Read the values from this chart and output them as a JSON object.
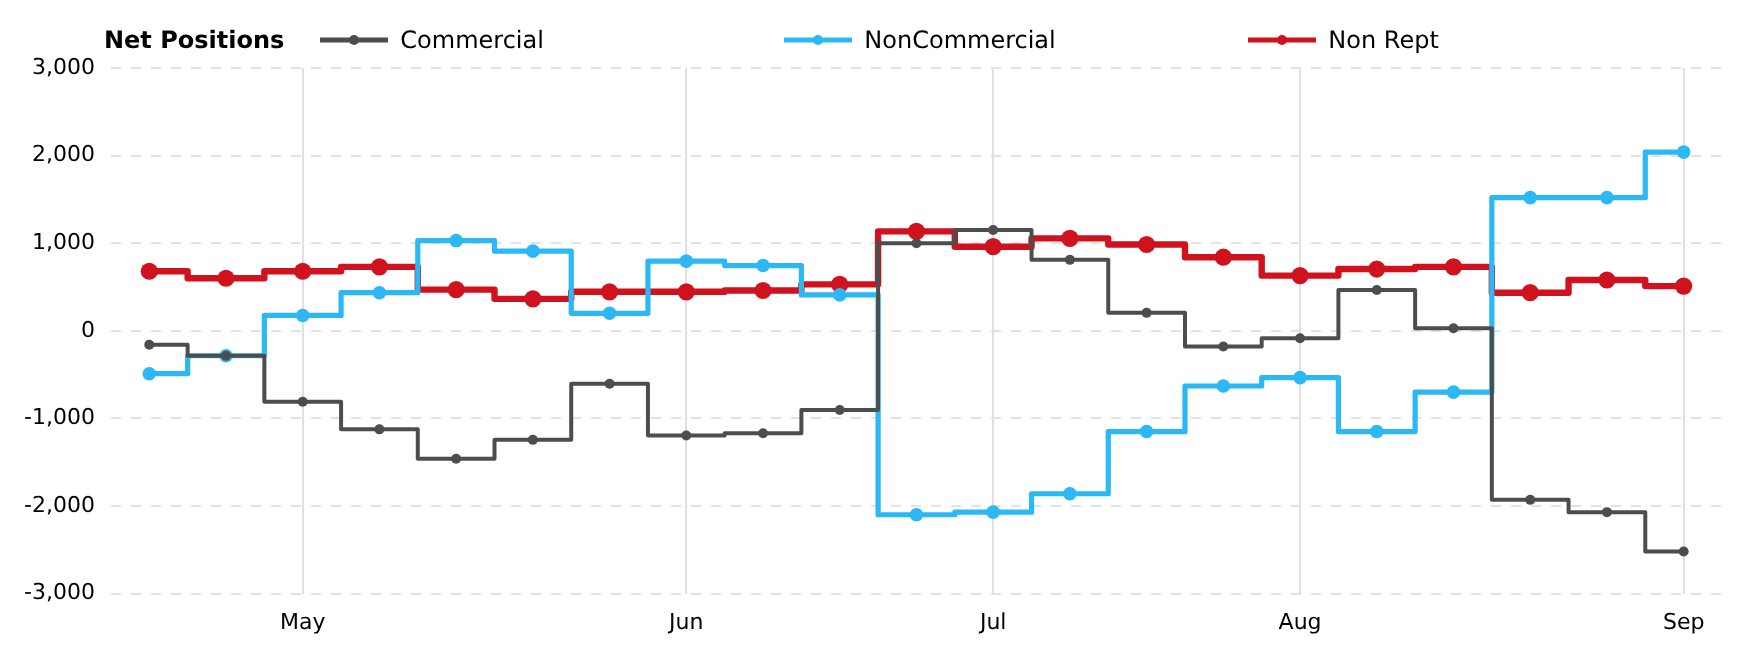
{
  "chart_data": {
    "type": "step",
    "legend_title": "Net Positions",
    "categories": [
      null,
      null,
      "May",
      null,
      null,
      null,
      null,
      "Jun",
      null,
      null,
      null,
      "Jul",
      null,
      null,
      null,
      "Aug",
      null,
      null,
      null,
      null,
      "Sep"
    ],
    "series": [
      {
        "name": "Commercial",
        "color": "#4d4d4d",
        "values": [
          -160,
          -285,
          -810,
          -1125,
          -1460,
          -1245,
          -605,
          -1195,
          -1170,
          -905,
          1000,
          1150,
          810,
          205,
          -180,
          -85,
          465,
          30,
          -1930,
          -2070,
          -2520
        ]
      },
      {
        "name": "NonCommercial",
        "color": "#2cb7f5",
        "values": [
          -490,
          -285,
          175,
          435,
          1030,
          910,
          200,
          795,
          745,
          410,
          -2100,
          -2070,
          -1860,
          -1150,
          -630,
          -535,
          -1150,
          -700,
          1520,
          1520,
          2040
        ]
      },
      {
        "name": "Non Rept",
        "color": "#d0121f",
        "values": [
          680,
          600,
          680,
          730,
          470,
          365,
          445,
          445,
          460,
          530,
          1135,
          960,
          1055,
          985,
          840,
          630,
          705,
          730,
          435,
          580,
          510
        ]
      }
    ],
    "ylim": [
      -3000,
      3000
    ],
    "yticks": [
      {
        "value": -3000,
        "label": "-3,000"
      },
      {
        "value": -2000,
        "label": "-2,000"
      },
      {
        "value": -1000,
        "label": "-1,000"
      },
      0,
      {
        "value": 1000,
        "label": "1,000"
      },
      {
        "value": 2000,
        "label": "2,000"
      },
      {
        "value": 3000,
        "label": "3,000"
      }
    ],
    "grid": true,
    "legend": "top",
    "marker": "circle",
    "line_style": "solid"
  }
}
